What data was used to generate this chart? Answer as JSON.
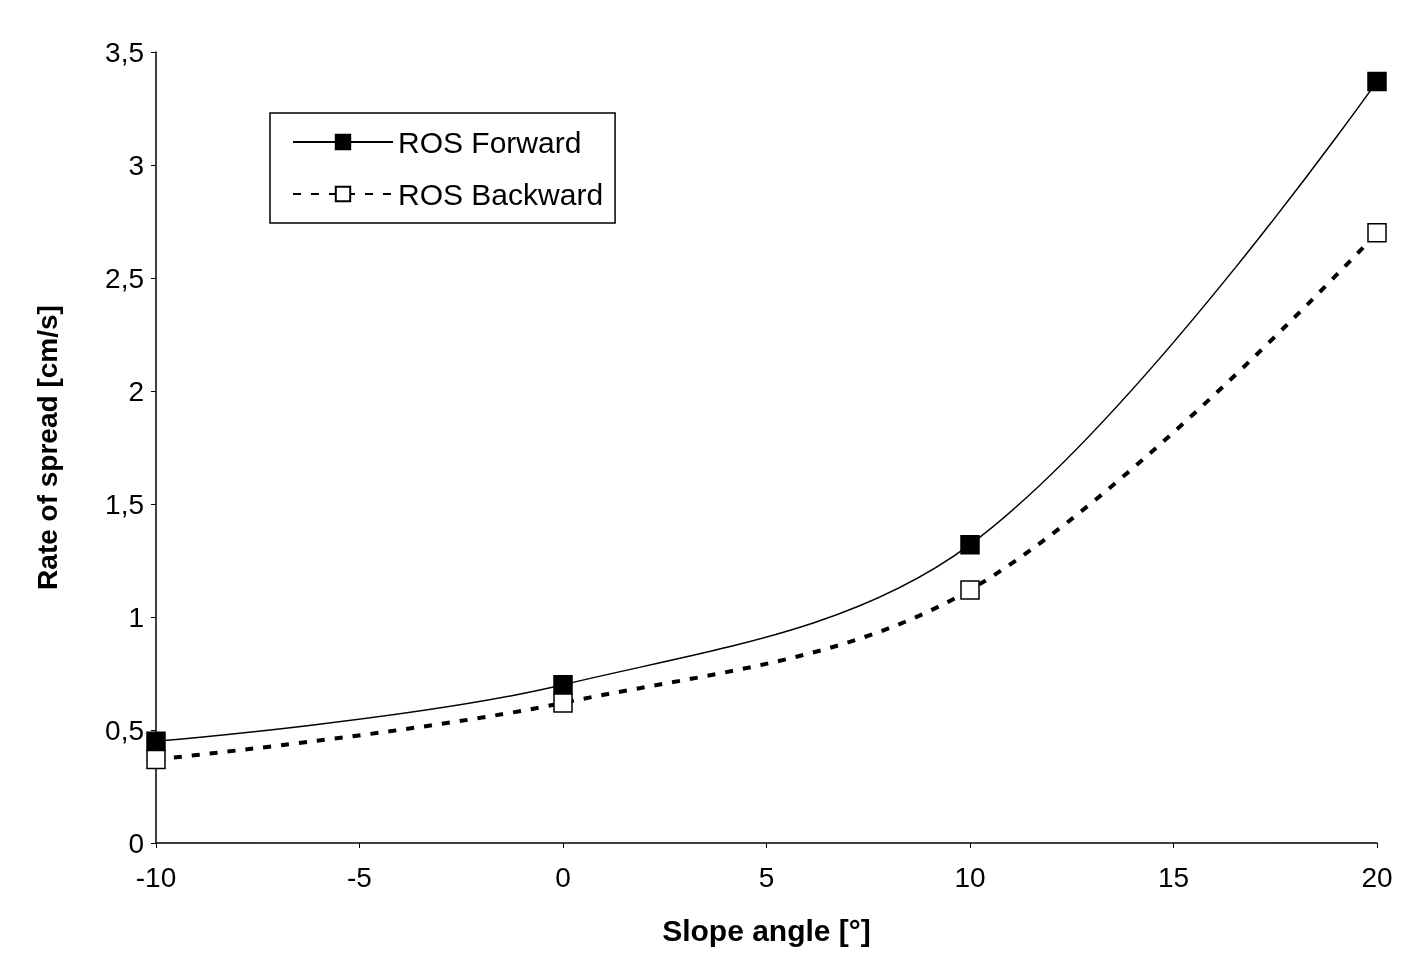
{
  "chart_data": {
    "type": "line",
    "xlabel": "Slope angle [°]",
    "ylabel": "Rate of spread [cm/s]",
    "x": [
      -10,
      0,
      10,
      20
    ],
    "series": [
      {
        "name": "ROS Forward",
        "color": "#000000",
        "values": [
          0.45,
          0.7,
          1.32,
          3.37
        ],
        "line_style": "solid"
      },
      {
        "name": "ROS Backward",
        "color": "#000000",
        "values": [
          0.37,
          0.62,
          1.12,
          2.7
        ],
        "line_style": "dashed"
      }
    ],
    "xlim": [
      -10,
      20
    ],
    "xticks": [
      -10,
      -5,
      0,
      5,
      10,
      15,
      20
    ],
    "ylim": [
      0,
      3.5
    ],
    "yticks": [
      0,
      {
        "value": 0.5,
        "label": "0,5"
      },
      1,
      {
        "value": 1.5,
        "label": "1,5"
      },
      2,
      {
        "value": 2.5,
        "label": "2,5"
      },
      3,
      {
        "value": 3.5,
        "label": "3,5"
      }
    ],
    "grid": false,
    "legend": "top left",
    "marker": "square"
  }
}
